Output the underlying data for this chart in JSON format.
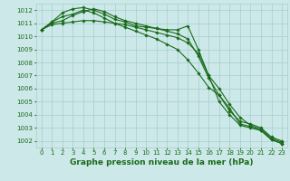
{
  "title": "Graphe pression niveau de la mer (hPa)",
  "background_color": "#cce8e8",
  "grid_color": "#a8cece",
  "line_color": "#1a6b1a",
  "x_values": [
    0,
    1,
    2,
    3,
    4,
    5,
    6,
    7,
    8,
    9,
    10,
    11,
    12,
    13,
    14,
    15,
    16,
    17,
    18,
    19,
    20,
    21,
    22,
    23
  ],
  "series": [
    [
      1010.5,
      1011.1,
      1011.8,
      1012.1,
      1012.2,
      1012.0,
      1011.7,
      1011.3,
      1011.1,
      1010.8,
      1010.7,
      1010.6,
      1010.5,
      1010.5,
      1010.8,
      1009.0,
      1007.0,
      1005.0,
      1004.0,
      1003.2,
      1003.0,
      1002.8,
      1002.1,
      1001.8
    ],
    [
      1010.5,
      1011.1,
      1011.5,
      1011.7,
      1012.0,
      1011.8,
      1011.4,
      1011.0,
      1010.7,
      1010.4,
      1010.1,
      1009.8,
      1009.4,
      1009.0,
      1008.2,
      1007.2,
      1006.1,
      1005.5,
      1004.3,
      1003.5,
      1003.3,
      1003.0,
      1002.3,
      1002.0
    ],
    [
      1010.5,
      1010.9,
      1011.0,
      1011.1,
      1011.2,
      1011.2,
      1011.1,
      1011.0,
      1010.9,
      1010.7,
      1010.5,
      1010.3,
      1010.1,
      1009.9,
      1009.5,
      1008.7,
      1007.0,
      1006.0,
      1004.8,
      1003.8,
      1003.2,
      1002.9,
      1002.2,
      1001.9
    ],
    [
      1010.5,
      1011.0,
      1011.2,
      1011.6,
      1011.9,
      1012.1,
      1011.9,
      1011.5,
      1011.2,
      1011.0,
      1010.8,
      1010.6,
      1010.4,
      1010.2,
      1009.8,
      1008.5,
      1006.8,
      1005.5,
      1004.5,
      1003.3,
      1003.1,
      1002.8,
      1002.1,
      1001.8
    ]
  ],
  "ylim": [
    1001.5,
    1012.5
  ],
  "yticks": [
    1002,
    1003,
    1004,
    1005,
    1006,
    1007,
    1008,
    1009,
    1010,
    1011,
    1012
  ],
  "xticks": [
    0,
    1,
    2,
    3,
    4,
    5,
    6,
    7,
    8,
    9,
    10,
    11,
    12,
    13,
    14,
    15,
    16,
    17,
    18,
    19,
    20,
    21,
    22,
    23
  ],
  "marker": "D",
  "marker_size": 1.8,
  "line_width": 0.8,
  "title_fontsize": 6.5,
  "tick_fontsize": 5.0
}
